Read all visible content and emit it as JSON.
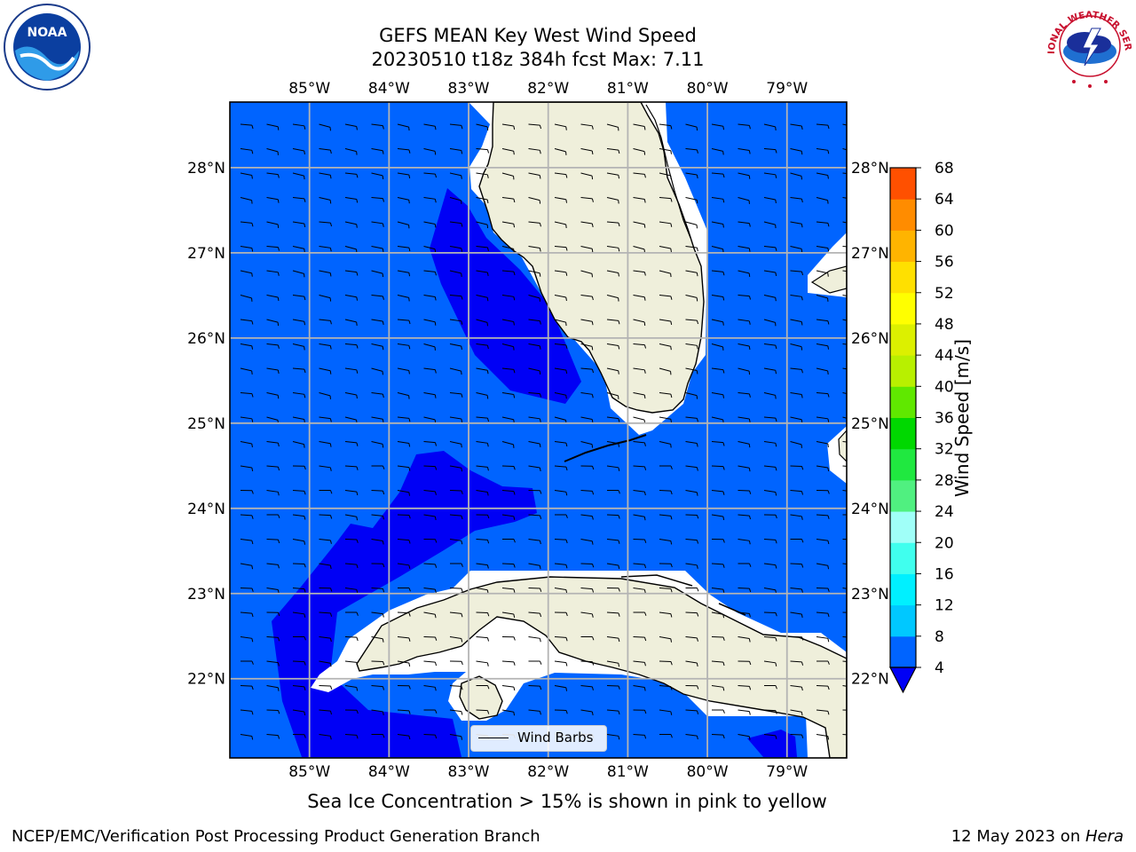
{
  "title": {
    "line1": "GEFS MEAN Key West Wind Speed",
    "line2": "20230510 t18z 384h fcst   Max: 7.11"
  },
  "map": {
    "lon_range": [
      -86.0,
      -78.25
    ],
    "lat_range": [
      21.07,
      28.77
    ],
    "lon_ticks": [
      -85,
      -84,
      -83,
      -82,
      -81,
      -80,
      -79
    ],
    "lat_ticks": [
      22,
      23,
      24,
      25,
      26,
      27,
      28
    ],
    "lon_tick_labels": [
      "85°W",
      "84°W",
      "83°W",
      "82°W",
      "81°W",
      "80°W",
      "79°W"
    ],
    "lat_tick_labels": [
      "22°N",
      "23°N",
      "24°N",
      "25°N",
      "26°N",
      "27°N",
      "28°N"
    ],
    "grid": true,
    "ocean_color": "#0064ff",
    "higher_wind_color": "#0000f5",
    "land_color": "#efefdb",
    "legend_label": "Wind Barbs",
    "legend_position": "bottom-center"
  },
  "colorbar": {
    "label": "Wind Speed [m/s]",
    "ticks": [
      "4",
      "8",
      "12",
      "16",
      "20",
      "24",
      "28",
      "32",
      "36",
      "40",
      "44",
      "48",
      "52",
      "56",
      "60",
      "64",
      "68"
    ],
    "colors": [
      "#0064ff",
      "#00c8ff",
      "#00f0ff",
      "#40ffee",
      "#a0fff8",
      "#50f080",
      "#20e840",
      "#00d800",
      "#60e800",
      "#b8f000",
      "#dcf000",
      "#ffff00",
      "#ffe000",
      "#ffb400",
      "#ff8c00",
      "#ff5000",
      "#ff2800",
      "#ff0000"
    ]
  },
  "caption": "Sea Ice Concentration > 15% is shown in pink to yellow",
  "footer": {
    "left": "NCEP/EMC/Verification Post Processing Product Generation Branch",
    "right_date": "12 May 2023 on ",
    "right_machine": "Hera"
  },
  "logos": {
    "noaa_text": "NOAA",
    "nws_text": "NATIONAL WEATHER SERVICE"
  }
}
